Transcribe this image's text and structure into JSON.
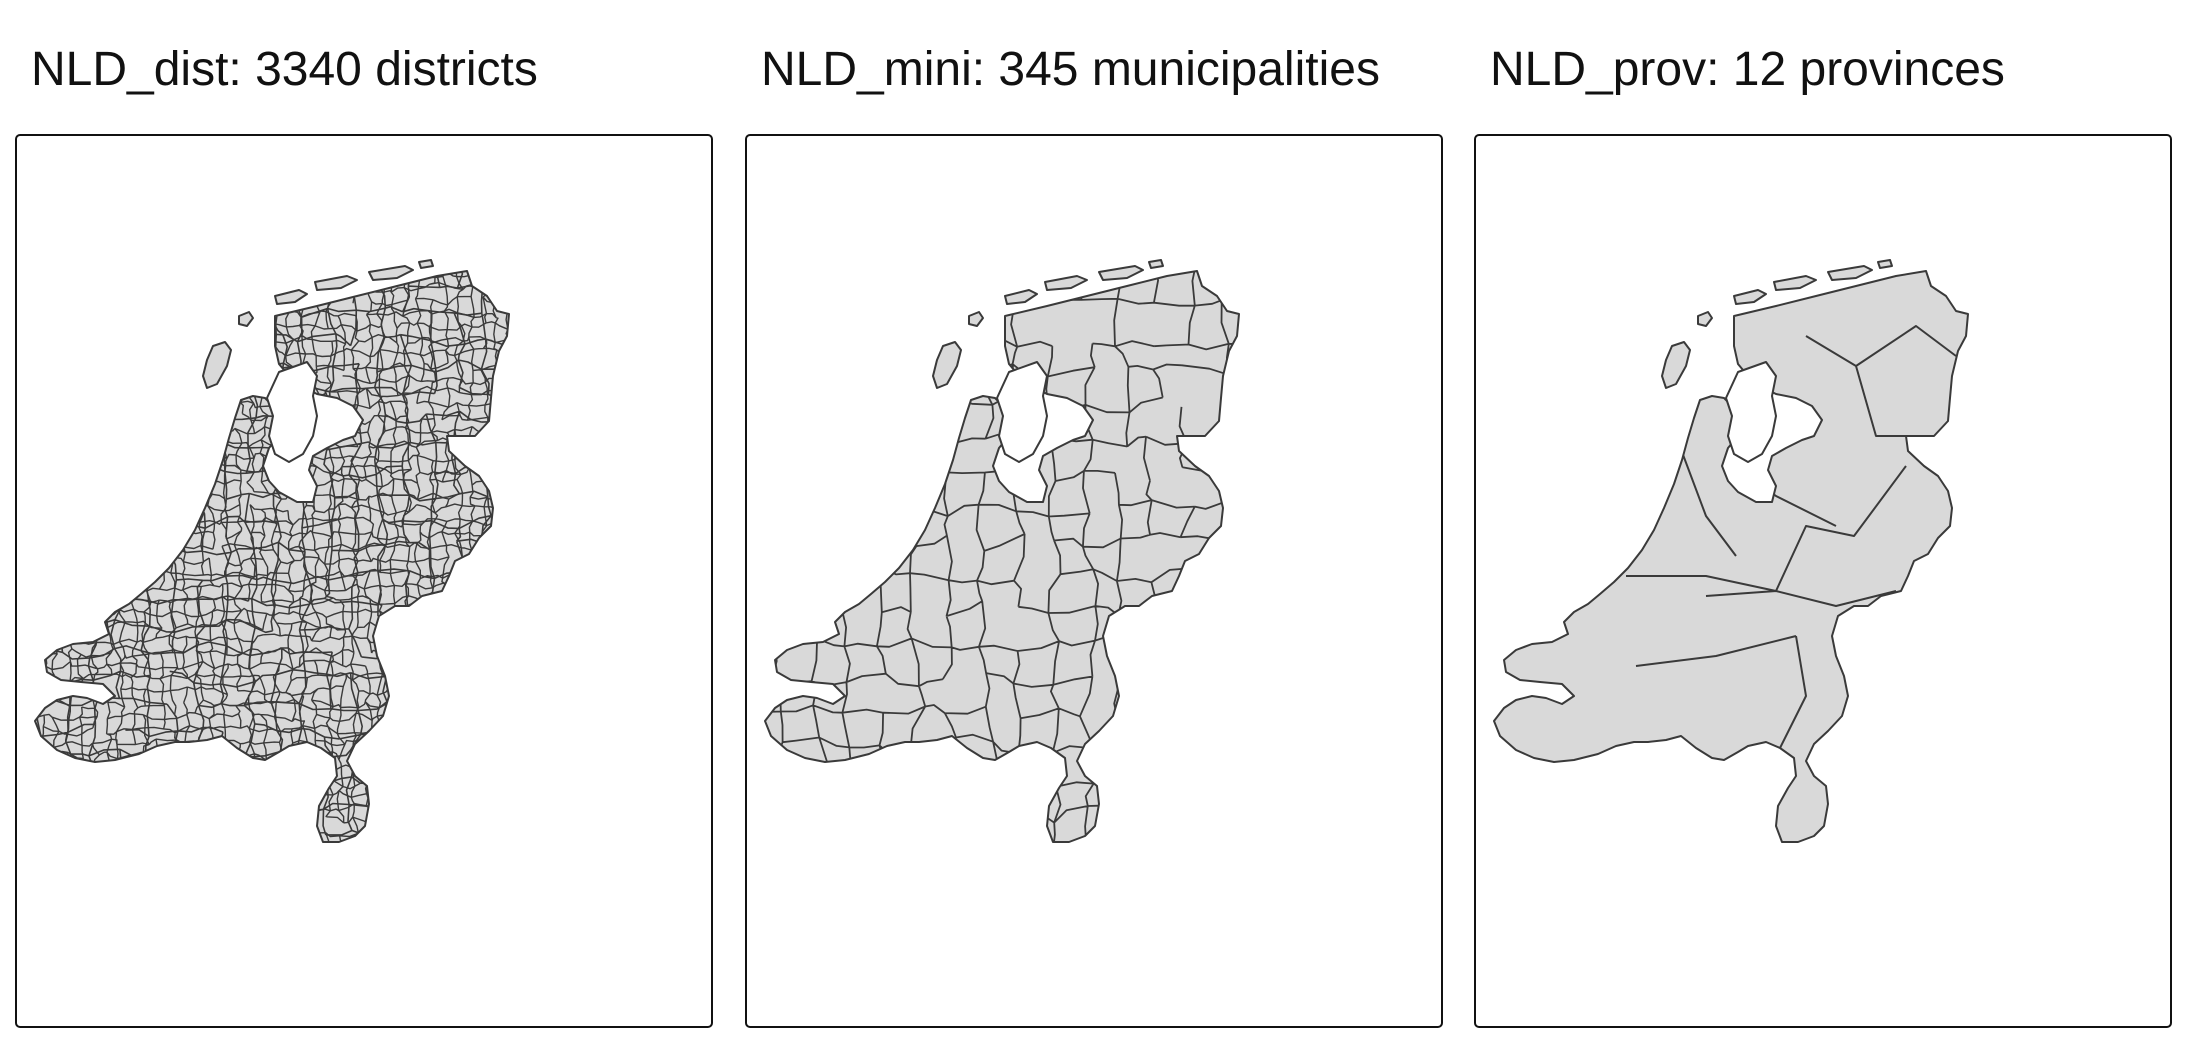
{
  "panels": [
    {
      "title": "NLD_dist: 3340 districts"
    },
    {
      "title": "NLD_mini: 345 municipalities"
    },
    {
      "title": "NLD_prov: 12 provinces"
    }
  ],
  "colors": {
    "land_fill": "#d9d9d9",
    "border_stroke": "#3a3a3a",
    "frame_stroke": "#111111",
    "background": "#ffffff"
  }
}
